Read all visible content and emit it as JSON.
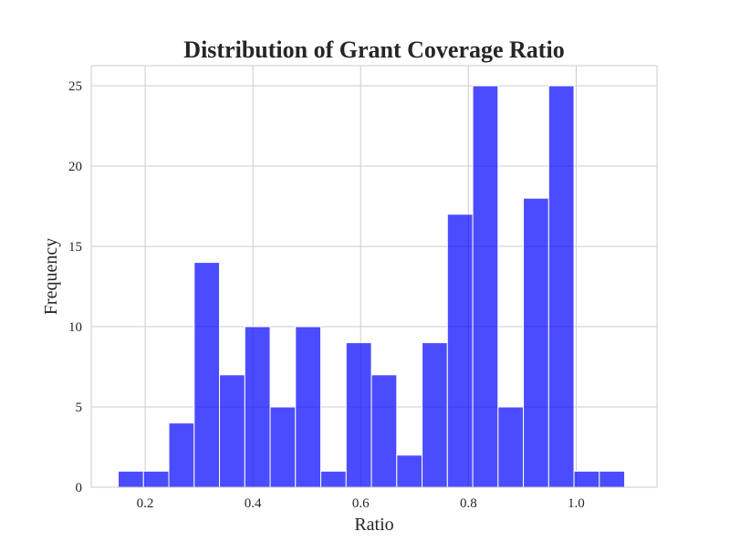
{
  "chart_data": {
    "type": "bar",
    "title": "Distribution of Grant Coverage Ratio",
    "xlabel": "Ratio",
    "ylabel": "Frequency",
    "xlim": [
      0.1,
      1.15
    ],
    "ylim": [
      0,
      26.25
    ],
    "x_ticks": [
      0.2,
      0.4,
      0.6,
      0.8,
      1.0
    ],
    "x_tick_labels": [
      "0.2",
      "0.4",
      "0.6",
      "0.8",
      "1.0"
    ],
    "y_ticks": [
      0,
      5,
      10,
      15,
      20,
      25
    ],
    "y_tick_labels": [
      "0",
      "5",
      "10",
      "15",
      "20",
      "25"
    ],
    "grid": true,
    "bar_color": "#0000ff",
    "bar_opacity": 0.7,
    "bins": [
      {
        "x_start": 0.15,
        "x_end": 0.197,
        "value": 1
      },
      {
        "x_start": 0.197,
        "x_end": 0.244,
        "value": 1
      },
      {
        "x_start": 0.244,
        "x_end": 0.291,
        "value": 4
      },
      {
        "x_start": 0.291,
        "x_end": 0.338,
        "value": 14
      },
      {
        "x_start": 0.338,
        "x_end": 0.385,
        "value": 7
      },
      {
        "x_start": 0.385,
        "x_end": 0.432,
        "value": 10
      },
      {
        "x_start": 0.432,
        "x_end": 0.479,
        "value": 5
      },
      {
        "x_start": 0.479,
        "x_end": 0.526,
        "value": 10
      },
      {
        "x_start": 0.526,
        "x_end": 0.573,
        "value": 1
      },
      {
        "x_start": 0.573,
        "x_end": 0.62,
        "value": 9
      },
      {
        "x_start": 0.62,
        "x_end": 0.667,
        "value": 7
      },
      {
        "x_start": 0.667,
        "x_end": 0.714,
        "value": 2
      },
      {
        "x_start": 0.714,
        "x_end": 0.761,
        "value": 9
      },
      {
        "x_start": 0.761,
        "x_end": 0.808,
        "value": 17
      },
      {
        "x_start": 0.808,
        "x_end": 0.855,
        "value": 25
      },
      {
        "x_start": 0.855,
        "x_end": 0.902,
        "value": 5
      },
      {
        "x_start": 0.902,
        "x_end": 0.949,
        "value": 18
      },
      {
        "x_start": 0.949,
        "x_end": 0.996,
        "value": 25
      },
      {
        "x_start": 0.996,
        "x_end": 1.043,
        "value": 1
      },
      {
        "x_start": 1.043,
        "x_end": 1.09,
        "value": 1
      }
    ]
  }
}
